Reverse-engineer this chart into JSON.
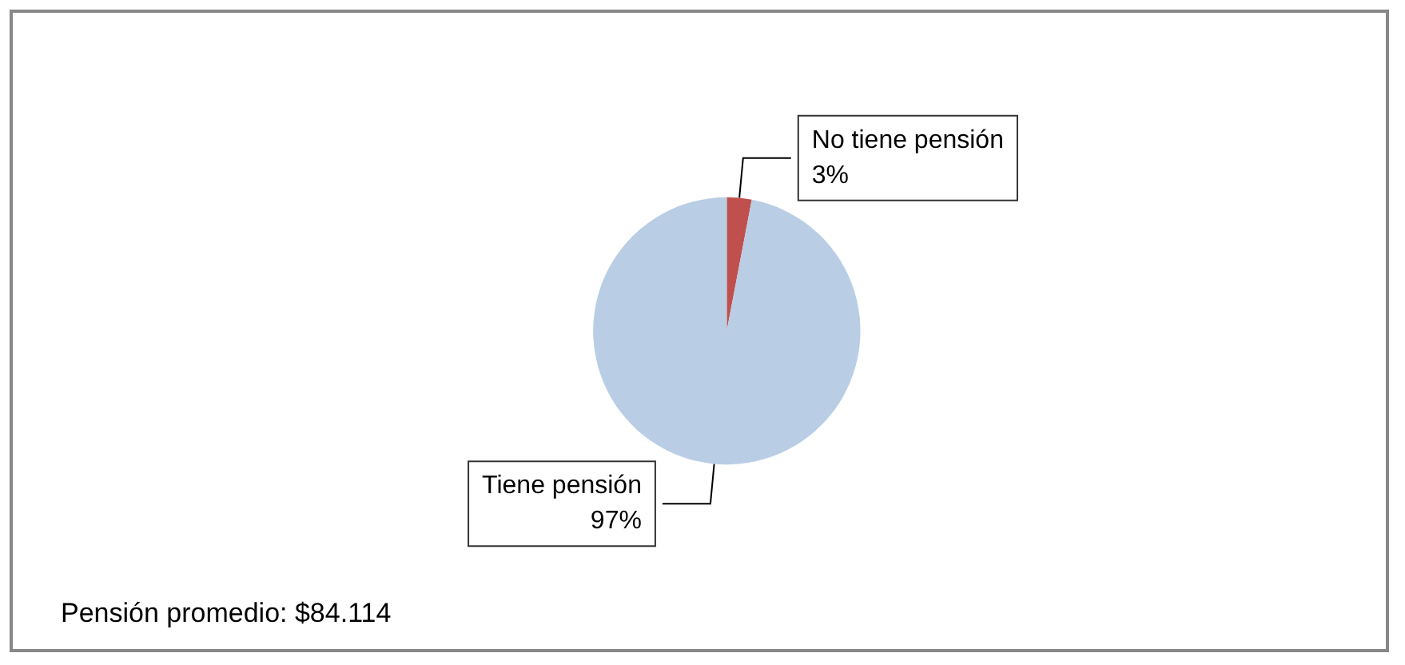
{
  "chart_data": {
    "type": "pie",
    "categories": [
      "No tiene pensión",
      "Tiene pensión"
    ],
    "values": [
      3,
      97
    ],
    "colors": [
      "#c0504d",
      "#b9cde5"
    ],
    "value_labels": [
      "3%",
      "97%"
    ],
    "annotations": [
      "Pensión promedio: $84.114"
    ],
    "legend": false
  }
}
